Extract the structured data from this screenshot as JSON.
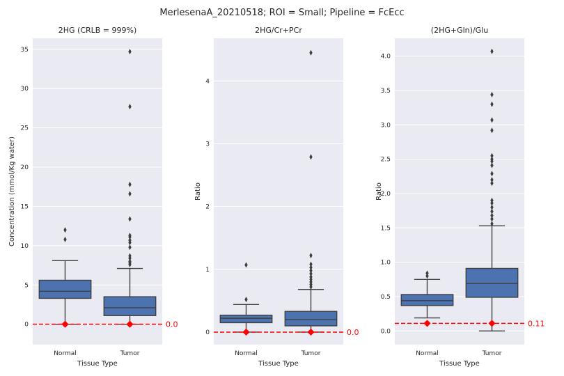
{
  "suptitle": "MerlesenaA_20210518; ROI = Small; Pipeline = FcEcc",
  "colors": {
    "box_fill": "#4c72b0",
    "line": "#3f3f3f",
    "panel_bg": "#eaeaf2",
    "threshold": "#ff0000"
  },
  "chart_data": [
    {
      "type": "box",
      "title": "2HG (CRLB = 999%)",
      "xlabel": "Tissue Type",
      "ylabel": "Concentration (mmol/Kg water)",
      "categories": [
        "Normal",
        "Tumor"
      ],
      "ylim": [
        -2.6,
        36.4
      ],
      "yticks": [
        0,
        5,
        10,
        15,
        20,
        25,
        30,
        35
      ],
      "ytick_labels": [
        "0",
        "5",
        "10",
        "15",
        "20",
        "25",
        "30",
        "35"
      ],
      "boxes": [
        {
          "category": "Normal",
          "whisker_low": 0.0,
          "q1": 3.3,
          "median": 4.2,
          "q3": 5.6,
          "whisker_high": 8.1,
          "outliers": [
            10.8,
            12.0
          ]
        },
        {
          "category": "Tumor",
          "whisker_low": 0.0,
          "q1": 1.1,
          "median": 2.1,
          "q3": 3.5,
          "whisker_high": 7.1,
          "outliers": [
            7.6,
            7.8,
            8.0,
            8.4,
            8.7,
            9.8,
            10.4,
            10.7,
            11.1,
            11.3,
            13.4,
            16.6,
            17.8,
            27.7,
            34.7
          ]
        }
      ],
      "markers": [
        {
          "category": "Normal",
          "y": 0.0
        },
        {
          "category": "Tumor",
          "y": 0.0
        }
      ],
      "threshold": {
        "y": 0.0,
        "label": "0.0"
      }
    },
    {
      "type": "box",
      "title": "2HG/Cr+PCr",
      "xlabel": "Tissue Type",
      "ylabel": "Ratio",
      "categories": [
        "Normal",
        "Tumor"
      ],
      "ylim": [
        -0.2,
        4.68
      ],
      "yticks": [
        0,
        1,
        2,
        3,
        4
      ],
      "ytick_labels": [
        "0",
        "1",
        "2",
        "3",
        "4"
      ],
      "boxes": [
        {
          "category": "Normal",
          "whisker_low": 0.0,
          "q1": 0.15,
          "median": 0.22,
          "q3": 0.27,
          "whisker_high": 0.44,
          "outliers": [
            0.52,
            1.07
          ]
        },
        {
          "category": "Tumor",
          "whisker_low": 0.0,
          "q1": 0.1,
          "median": 0.2,
          "q3": 0.33,
          "whisker_high": 0.68,
          "outliers": [
            0.72,
            0.76,
            0.8,
            0.84,
            0.88,
            0.93,
            0.98,
            1.03,
            1.08,
            1.22,
            2.79,
            4.45
          ]
        }
      ],
      "markers": [
        {
          "category": "Normal",
          "y": 0.0
        },
        {
          "category": "Tumor",
          "y": 0.0
        }
      ],
      "threshold": {
        "y": 0.0,
        "label": "0.0"
      }
    },
    {
      "type": "box",
      "title": "(2HG+Gln)/Glu",
      "xlabel": "Tissue Type",
      "ylabel": "Ratio",
      "categories": [
        "Normal",
        "Tumor"
      ],
      "ylim": [
        -0.2,
        4.26
      ],
      "yticks": [
        0.0,
        0.5,
        1.0,
        1.5,
        2.0,
        2.5,
        3.0,
        3.5,
        4.0
      ],
      "ytick_labels": [
        "0.0",
        "0.5",
        "1.0",
        "1.5",
        "2.0",
        "2.5",
        "3.0",
        "3.5",
        "4.0"
      ],
      "boxes": [
        {
          "category": "Normal",
          "whisker_low": 0.19,
          "q1": 0.37,
          "median": 0.44,
          "q3": 0.53,
          "whisker_high": 0.75,
          "outliers": [
            0.8,
            0.84
          ]
        },
        {
          "category": "Tumor",
          "whisker_low": 0.0,
          "q1": 0.49,
          "median": 0.69,
          "q3": 0.91,
          "whisker_high": 1.53,
          "outliers": [
            1.56,
            1.63,
            1.68,
            1.74,
            1.8,
            1.86,
            1.9,
            2.15,
            2.2,
            2.29,
            2.41,
            2.47,
            2.5,
            2.55,
            2.92,
            3.07,
            3.3,
            3.44,
            4.07
          ]
        }
      ],
      "markers": [
        {
          "category": "Normal",
          "y": 0.11
        },
        {
          "category": "Tumor",
          "y": 0.11
        }
      ],
      "threshold": {
        "y": 0.11,
        "label": "0.11"
      }
    }
  ]
}
